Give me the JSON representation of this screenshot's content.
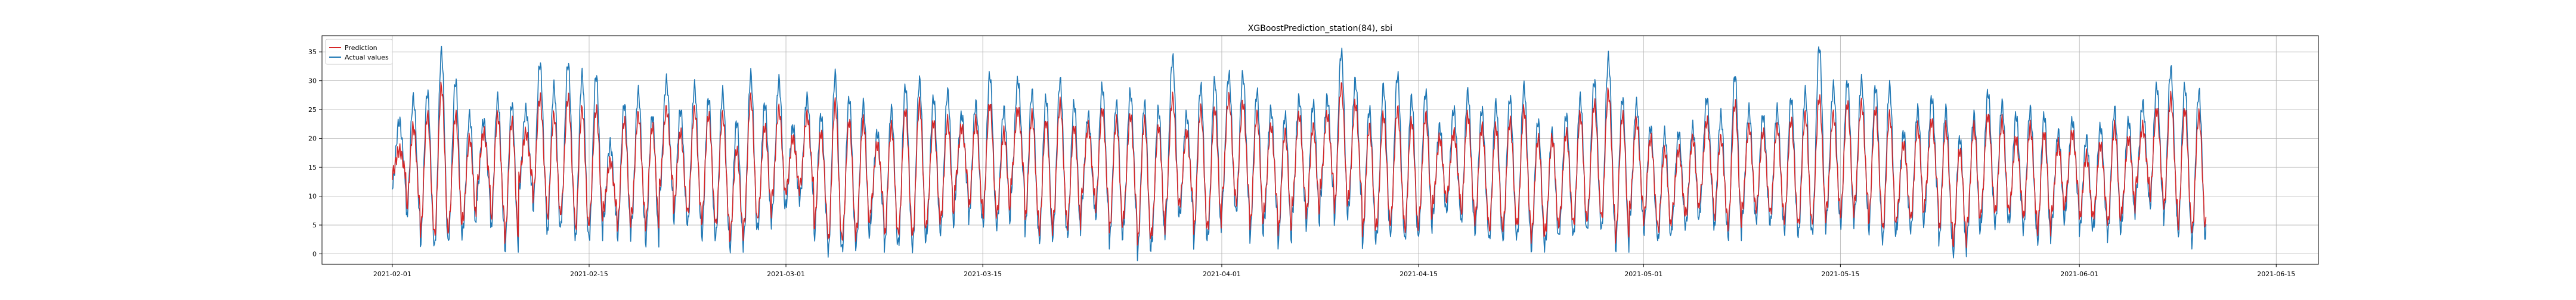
{
  "chart_data": {
    "type": "line",
    "title": "XGBoostPrediction_station(84), sbi",
    "xlabel": "",
    "ylabel": "",
    "x_start": "2021-02-01",
    "x_end": "2021-06-10",
    "xlim": [
      "2021-01-27",
      "2021-06-18"
    ],
    "ylim": [
      -1.8,
      37.8
    ],
    "x_ticks": [
      "2021-02-01",
      "2021-02-15",
      "2021-03-01",
      "2021-03-15",
      "2021-04-01",
      "2021-04-15",
      "2021-05-01",
      "2021-05-15",
      "2021-06-01",
      "2021-06-15"
    ],
    "y_ticks": [
      0,
      5,
      10,
      15,
      20,
      25,
      30,
      35
    ],
    "grid": true,
    "legend": "top-left",
    "series": [
      {
        "name": "Prediction",
        "color": "#d62728",
        "period_hours": 24,
        "daily_high": [
          18,
          22,
          24,
          29,
          24,
          20,
          21,
          24,
          23,
          21,
          27,
          24,
          27,
          25,
          25,
          16,
          23,
          24,
          22,
          25,
          21,
          25,
          24,
          24,
          18,
          27,
          22,
          25,
          20,
          24,
          21,
          26,
          23,
          23,
          19,
          22,
          25,
          26,
          23,
          23,
          22,
          23,
          26,
          21,
          25,
          24,
          23,
          26,
          22,
          22,
          25,
          23,
          24,
          23,
          22,
          27,
          21,
          25,
          25,
          27,
          26,
          24,
          22,
          21,
          24,
          22,
          24,
          29,
          26,
          22,
          24,
          25,
          23,
          24,
          20,
          21,
          24,
          22,
          22,
          23,
          25,
          20,
          20,
          21,
          24,
          26,
          28,
          24,
          23,
          20,
          18,
          18,
          20,
          23,
          20,
          26,
          22,
          21,
          22,
          23,
          24,
          27,
          24,
          26,
          26,
          25,
          24,
          19,
          22,
          23,
          22,
          18,
          22,
          24,
          23,
          20,
          22,
          21,
          19,
          21,
          17,
          19,
          22,
          20,
          22,
          25,
          27,
          25,
          24,
          21,
          20,
          23,
          26,
          23,
          28,
          21,
          20,
          18,
          20,
          22,
          24,
          23,
          24,
          24
        ],
        "daily_low": [
          14,
          8,
          4,
          3,
          5,
          6,
          12,
          6,
          3,
          13,
          10,
          6,
          8,
          4,
          6,
          8,
          5,
          7,
          5,
          12,
          8,
          7,
          6,
          5,
          3,
          5,
          7,
          10,
          11,
          12,
          5,
          2,
          3,
          4,
          8,
          3,
          4,
          3,
          6,
          6,
          12,
          8,
          7,
          7,
          13,
          6,
          4,
          6,
          5,
          10,
          8,
          4,
          7,
          2,
          4,
          8,
          9,
          4,
          5,
          10,
          9,
          5,
          8,
          4,
          9,
          7,
          12,
          8,
          10,
          4,
          5,
          6,
          4,
          6,
          9,
          10,
          7,
          6,
          4,
          5,
          5,
          3,
          4,
          6,
          5,
          7,
          6,
          3,
          8,
          6,
          4,
          7,
          7,
          10,
          6,
          5,
          8,
          8,
          7,
          6,
          5,
          6,
          8,
          7,
          9,
          6,
          4,
          7,
          6,
          10,
          4,
          2,
          5,
          8,
          7,
          8,
          6,
          4,
          7,
          10,
          6,
          7,
          5,
          8,
          12,
          10,
          8,
          5,
          4,
          6,
          9,
          11,
          8,
          10,
          12,
          6,
          5,
          7,
          10,
          11,
          10,
          12,
          12,
          13
        ]
      },
      {
        "name": "Actual values",
        "color": "#1f77b4",
        "period_hours": 24,
        "daily_high": [
          23,
          27,
          28,
          35,
          30,
          24,
          23,
          27,
          26,
          25,
          33,
          29,
          33,
          31,
          31,
          19,
          26,
          28,
          24,
          30,
          25,
          29,
          27,
          28,
          23,
          31,
          26,
          30,
          22,
          27,
          24,
          31,
          27,
          26,
          21,
          25,
          29,
          30,
          27,
          28,
          24,
          26,
          31,
          25,
          30,
          28,
          27,
          30,
          26,
          24,
          29,
          26,
          28,
          26,
          25,
          34,
          24,
          29,
          30,
          31,
          31,
          28,
          25,
          24,
          27,
          26,
          27,
          35,
          30,
          25,
          29,
          31,
          27,
          28,
          22,
          25,
          28,
          25,
          26,
          27,
          29,
          23,
          21,
          24,
          27,
          30,
          34,
          27,
          26,
          22,
          21,
          21,
          22,
          27,
          24,
          31,
          25,
          24,
          25,
          27,
          28,
          36,
          29,
          30,
          30,
          29,
          29,
          21,
          25,
          27,
          25,
          20,
          24,
          28,
          26,
          24,
          25,
          24,
          21,
          23,
          20,
          22,
          25,
          23,
          26,
          29,
          32,
          29,
          28,
          24,
          23,
          28,
          31,
          27,
          33,
          24,
          23,
          21,
          22,
          24,
          28,
          26,
          23,
          24
        ],
        "daily_low": [
          12,
          6,
          2,
          1,
          3,
          4,
          10,
          4,
          1,
          11,
          8,
          3,
          6,
          2,
          3,
          6,
          3,
          5,
          2,
          10,
          6,
          5,
          3,
          3,
          1,
          3,
          5,
          7,
          9,
          10,
          3,
          0,
          1,
          2,
          6,
          1,
          2,
          1,
          4,
          4,
          10,
          6,
          5,
          5,
          11,
          4,
          2,
          4,
          3,
          8,
          6,
          2,
          5,
          0,
          2,
          6,
          7,
          2,
          3,
          8,
          7,
          3,
          6,
          2,
          7,
          5,
          10,
          6,
          8,
          2,
          3,
          4,
          2,
          4,
          7,
          8,
          5,
          4,
          2,
          3,
          3,
          1,
          2,
          4,
          3,
          5,
          4,
          1,
          6,
          4,
          2,
          5,
          5,
          8,
          4,
          3,
          6,
          6,
          5,
          4,
          3,
          4,
          6,
          5,
          7,
          4,
          2,
          5,
          4,
          8,
          2,
          0,
          3,
          6,
          5,
          6,
          4,
          2,
          5,
          8,
          4,
          5,
          3,
          6,
          10,
          8,
          6,
          3,
          2,
          4,
          7,
          9,
          6,
          8,
          10,
          4,
          3,
          5,
          8,
          9,
          8,
          10,
          11,
          12
        ]
      }
    ]
  }
}
